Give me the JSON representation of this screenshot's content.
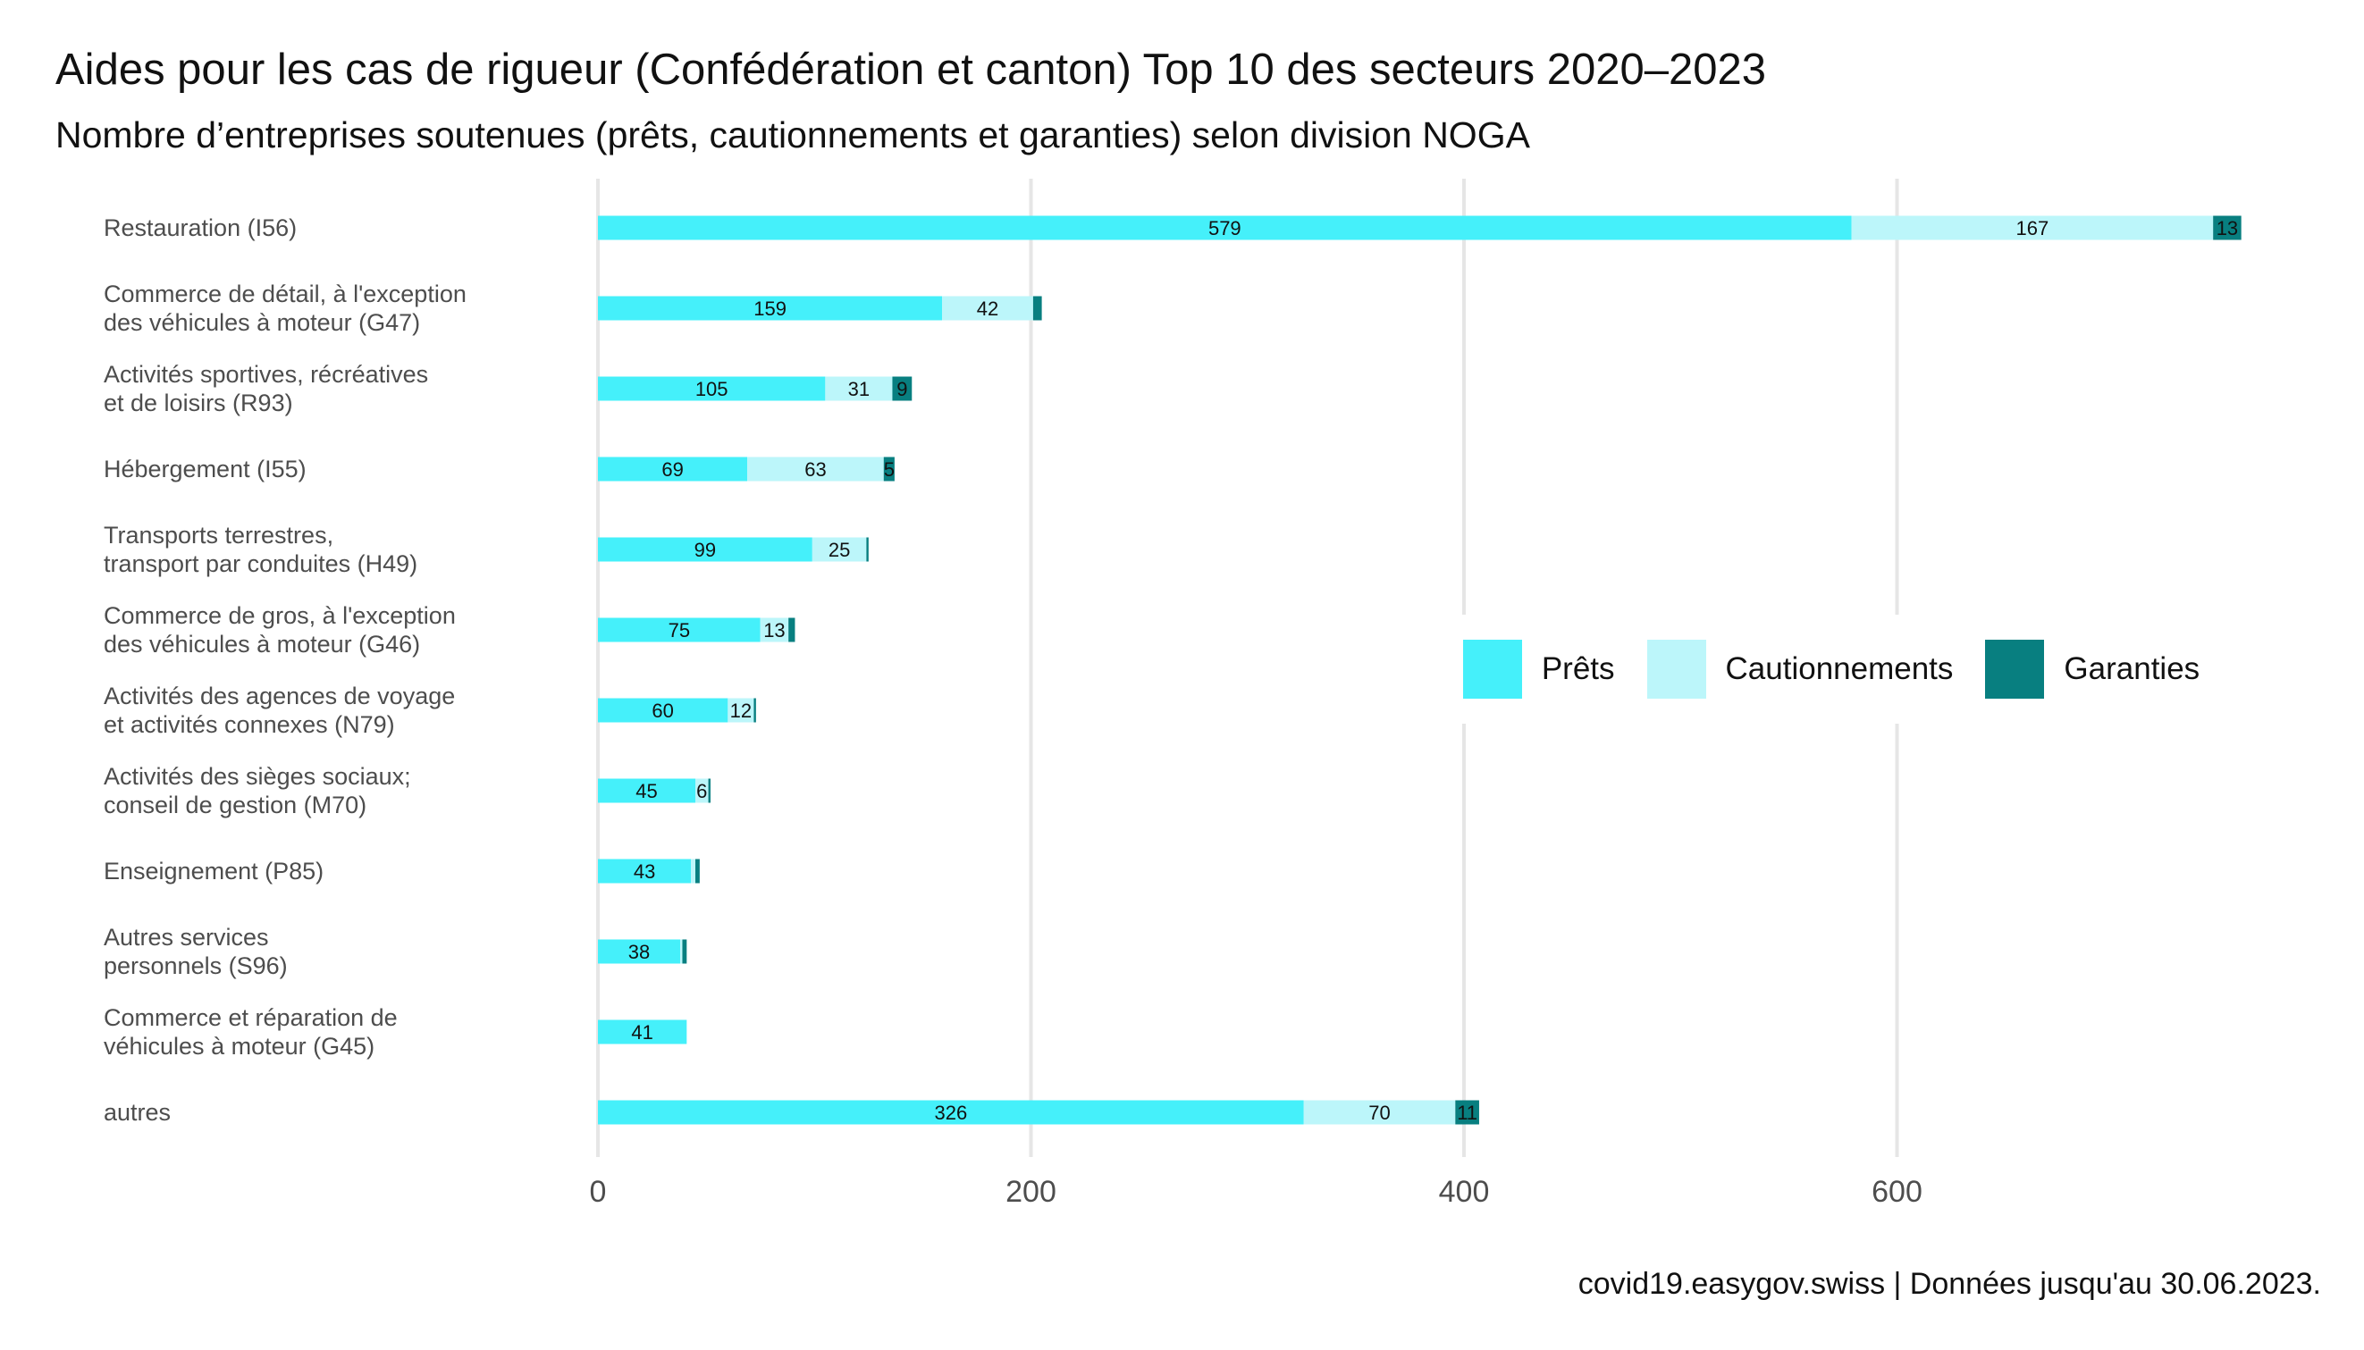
{
  "title": "Aides pour les cas de rigueur (Confédération et canton) Top 10 des secteurs 2020–2023",
  "subtitle": "Nombre d’entreprises soutenues (prêts, cautionnements et garanties) selon division NOGA",
  "caption": "covid19.easygov.swiss | Données jusqu'au 30.06.2023.",
  "colors": {
    "Prêts": "#45f0fa",
    "Cautionnements": "#bcf6fa",
    "Garanties": "#087f80",
    "grid": "#e6e6e6"
  },
  "chart_data": {
    "type": "bar",
    "orientation": "horizontal",
    "stacked": true,
    "categories": [
      [
        "Restauration (I56)"
      ],
      [
        "Commerce de détail, à l'exception",
        "des véhicules à moteur (G47)"
      ],
      [
        "Activités sportives, récréatives",
        "et de loisirs (R93)"
      ],
      [
        "Hébergement (I55)"
      ],
      [
        "Transports terrestres,",
        "transport par conduites (H49)"
      ],
      [
        "Commerce de gros, à l'exception",
        "des véhicules à moteur (G46)"
      ],
      [
        "Activités des agences de voyage",
        "et activités connexes (N79)"
      ],
      [
        "Activités des sièges sociaux;",
        "conseil de gestion (M70)"
      ],
      [
        "Enseignement (P85)"
      ],
      [
        "Autres services",
        "personnels (S96)"
      ],
      [
        "Commerce et réparation de",
        "véhicules à moteur (G45)"
      ],
      [
        "autres"
      ]
    ],
    "series": [
      {
        "name": "Prêts",
        "values": [
          579,
          159,
          105,
          69,
          99,
          75,
          60,
          45,
          43,
          38,
          41,
          326
        ],
        "labels": [
          "579",
          "159",
          "105",
          "69",
          "99",
          "75",
          "60",
          "45",
          "43",
          "38",
          "41",
          "326"
        ]
      },
      {
        "name": "Cautionnements",
        "values": [
          167,
          42,
          31,
          63,
          25,
          13,
          12,
          6,
          2,
          1,
          0,
          70
        ],
        "labels": [
          "167",
          "42",
          "31",
          "63",
          "25",
          "13",
          "12",
          "6",
          "",
          "",
          "",
          "70"
        ]
      },
      {
        "name": "Garanties",
        "values": [
          13,
          4,
          9,
          5,
          1,
          3,
          1,
          1,
          2,
          2,
          0,
          11
        ],
        "labels": [
          "13",
          "",
          "9",
          "5",
          "",
          "",
          "",
          "",
          "",
          "",
          "",
          "11"
        ]
      }
    ],
    "xlim": [
      0,
      780
    ],
    "xticks": [
      0,
      200,
      400,
      600
    ],
    "xtick_labels": [
      "0",
      "200",
      "400",
      "600"
    ],
    "grid": true,
    "legend_position": "right-center"
  }
}
